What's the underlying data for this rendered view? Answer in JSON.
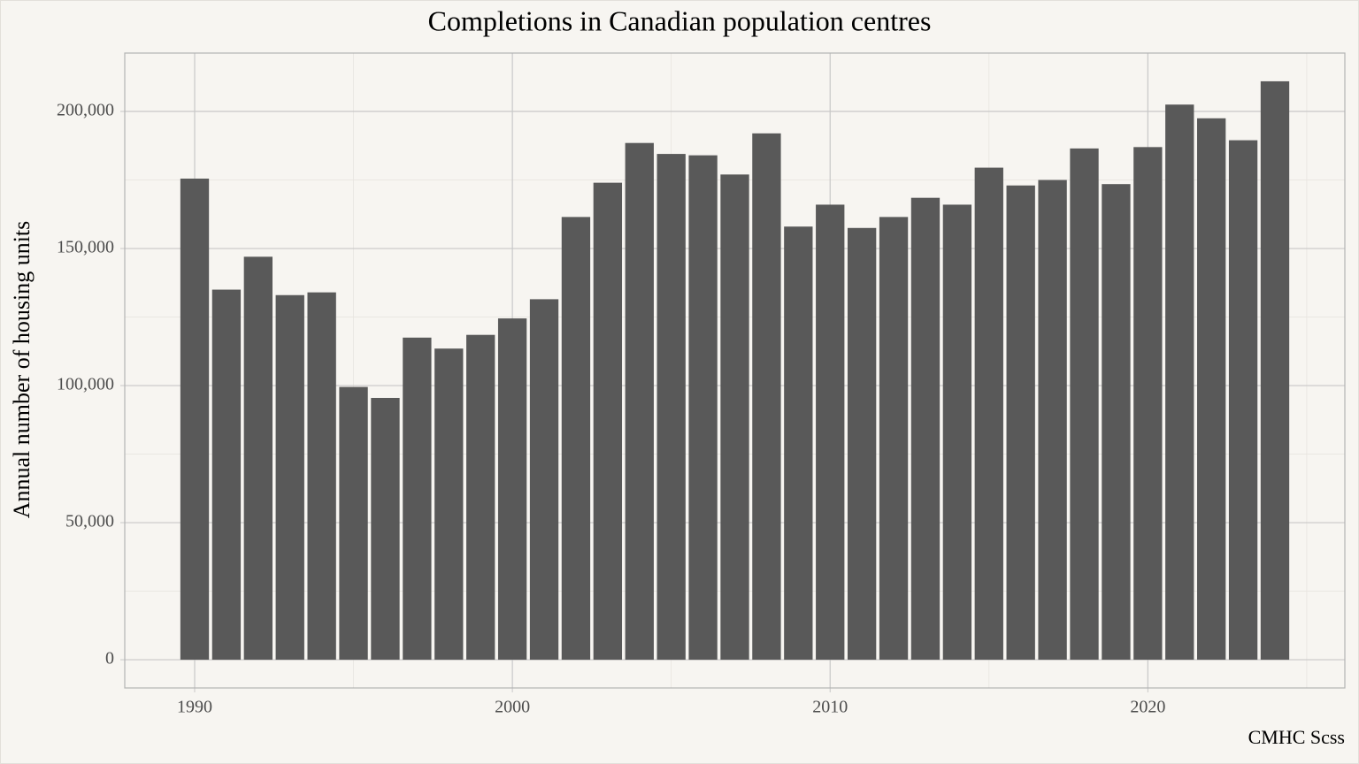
{
  "chart_data": {
    "type": "bar",
    "title": "Completions in Canadian population centres",
    "y_label": "Annual number of housing units",
    "caption": "CMHC Scss",
    "x": [
      1990,
      1991,
      1992,
      1993,
      1994,
      1995,
      1996,
      1997,
      1998,
      1999,
      2000,
      2001,
      2002,
      2003,
      2004,
      2005,
      2006,
      2007,
      2008,
      2009,
      2010,
      2011,
      2012,
      2013,
      2014,
      2015,
      2016,
      2017,
      2018,
      2019,
      2020,
      2021,
      2022,
      2023,
      2024
    ],
    "values": [
      175500,
      135000,
      147000,
      133000,
      134000,
      99500,
      95500,
      117500,
      113500,
      118500,
      124500,
      131500,
      161500,
      174000,
      188500,
      184500,
      184000,
      177000,
      192000,
      158000,
      166000,
      157500,
      161500,
      168500,
      166000,
      179500,
      173000,
      175000,
      186500,
      173500,
      187000,
      202500,
      197500,
      189500,
      211000
    ],
    "color": "#595959",
    "xlim": [
      1987.8,
      2026.2
    ],
    "ylim": [
      -10300,
      221300
    ],
    "xticks": [
      1990,
      2000,
      2010,
      2020
    ],
    "yticks": [
      0,
      {
        "value": 50000,
        "label": "50,000"
      },
      {
        "value": 100000,
        "label": "100,000"
      },
      {
        "value": 150000,
        "label": "150,000"
      },
      {
        "value": 200000,
        "label": "200,000"
      }
    ],
    "x_minor_grid": [
      1995,
      2005,
      2015,
      2025
    ],
    "y_minor_grid": [
      25000,
      75000,
      125000,
      175000
    ],
    "grid": true
  }
}
